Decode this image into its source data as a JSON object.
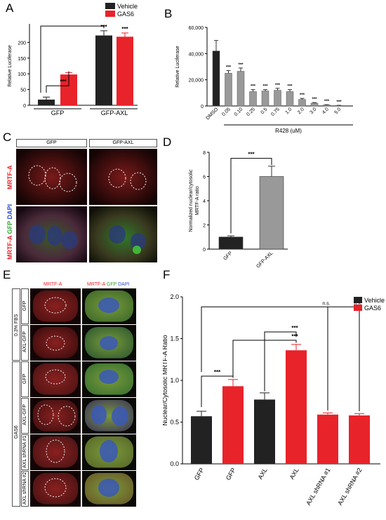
{
  "panels": {
    "A": {
      "letter": "A",
      "chart_data": {
        "type": "bar",
        "categories": [
          "GFP",
          "GFP-AXL"
        ],
        "series": [
          {
            "name": "Vehicle",
            "values": [
              18,
              222
            ],
            "errors": [
              8,
              15
            ],
            "color": "#222222"
          },
          {
            "name": "GAS6",
            "values": [
              98,
              218
            ],
            "errors": [
              6,
              12
            ],
            "color": "#e8232a"
          }
        ],
        "ylabel": "Relative Luciferase",
        "yticks": [
          "0",
          "50",
          "100",
          "150",
          "200"
        ],
        "ylim": [
          0,
          250
        ],
        "significance": [
          "***",
          "***",
          "***",
          "***"
        ],
        "legend_position": "top-right"
      }
    },
    "B": {
      "letter": "B",
      "chart_data": {
        "type": "bar",
        "categories": [
          "DMSO",
          "0.05",
          "0.10",
          "0.25",
          "0.5",
          "0.75",
          "1.0",
          "2.0",
          "3.0",
          "4.0",
          "5.0"
        ],
        "values": [
          42000,
          25000,
          26500,
          11000,
          11500,
          12000,
          11000,
          5000,
          2200,
          800,
          400
        ],
        "errors": [
          8000,
          2000,
          2500,
          1500,
          1000,
          1500,
          1500,
          800,
          400,
          200,
          100
        ],
        "colors": [
          "#222222",
          "#999999",
          "#999999",
          "#999999",
          "#999999",
          "#999999",
          "#999999",
          "#999999",
          "#999999",
          "#999999",
          "#999999"
        ],
        "ylabel": "Relative Luciferase",
        "yticks": [
          "0",
          "20,000",
          "40,000",
          "60,000"
        ],
        "ylim": [
          0,
          60000
        ],
        "xlabel": "R428 (uM)",
        "significance": "***"
      }
    },
    "C": {
      "letter": "C",
      "col_headers": [
        "GFP",
        "GFP-AXL"
      ],
      "row1_label": "MRTF-A",
      "row2_label": [
        "MRTF-A",
        " GFP",
        " DAPI"
      ]
    },
    "D": {
      "letter": "D",
      "chart_data": {
        "type": "bar",
        "categories": [
          "GFP",
          "GFP-AXL"
        ],
        "values": [
          1.0,
          6.0
        ],
        "errors": [
          0.1,
          0.85
        ],
        "colors": [
          "#222222",
          "#999999"
        ],
        "ylabel": [
          "Normalized nuclear/cytosolic",
          "MRTF-A ratio"
        ],
        "yticks": [
          "0",
          "2",
          "4",
          "6",
          "8"
        ],
        "ylim": [
          0,
          8
        ],
        "significance": "***"
      }
    },
    "E": {
      "letter": "E",
      "col_headers": [
        "MRTF-A",
        "MRTF-A",
        "GFP",
        "DAPI"
      ],
      "groups": [
        "0.3% FBS",
        "GAS6"
      ],
      "rows": [
        "GFP",
        "AXL-GFP",
        "GFP",
        "AXL-GFP",
        "AXL shRNA #1",
        "AXL shRNA #2"
      ]
    },
    "F": {
      "letter": "F",
      "chart_data": {
        "type": "bar",
        "categories": [
          "GFP",
          "GFP",
          "AXL",
          "AXL",
          "AXL shRNA #1",
          "AXL shRNA #2"
        ],
        "values": [
          0.57,
          0.93,
          0.77,
          1.36,
          0.59,
          0.58
        ],
        "errors": [
          0.06,
          0.08,
          0.08,
          0.07,
          0.02,
          0.02
        ],
        "colors": [
          "#222222",
          "#e8232a",
          "#222222",
          "#e8232a",
          "#e8232a",
          "#e8232a"
        ],
        "legend": [
          {
            "name": "Vehicle",
            "color": "#222222"
          },
          {
            "name": "GAS6",
            "color": "#e8232a"
          }
        ],
        "ylabel": "Nuclear/Cytosolic MRTF-A Ratio",
        "yticks": [
          "0.0",
          "0.5",
          "1.0",
          "1.5",
          "2.0"
        ],
        "ylim": [
          0,
          2.0
        ],
        "significance": [
          "***",
          "***",
          "***",
          "n.s.",
          "n.s."
        ],
        "legend_position": "top-right"
      }
    }
  }
}
